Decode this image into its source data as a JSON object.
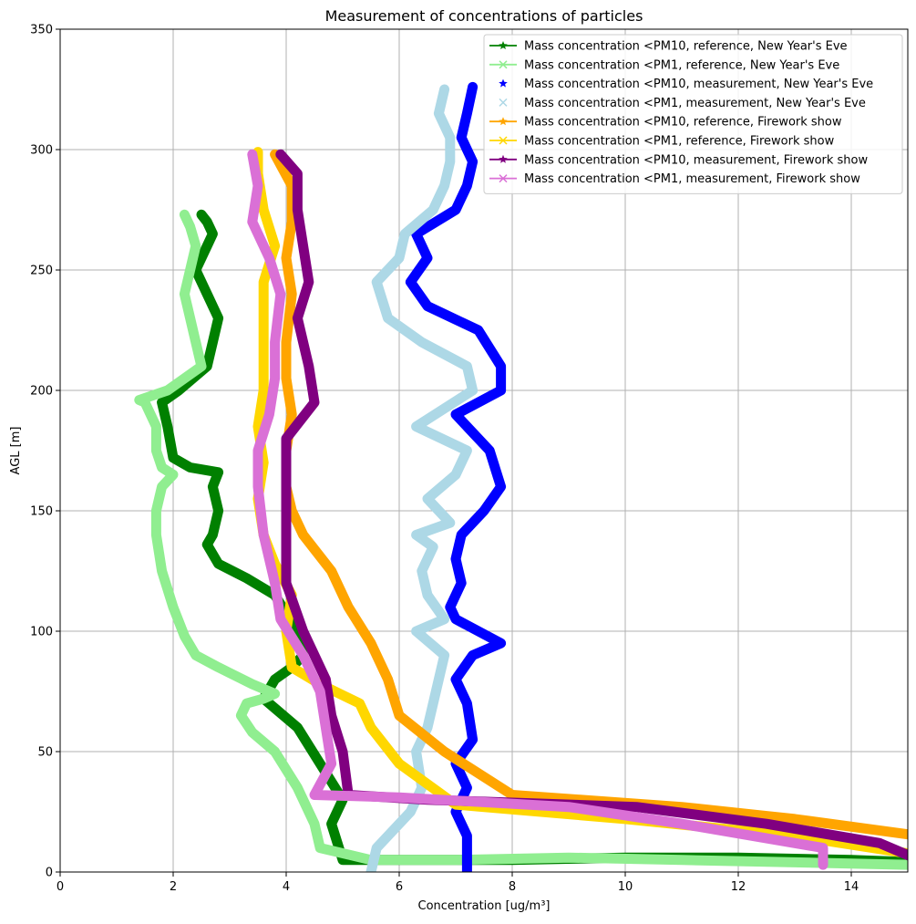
{
  "chart_data": {
    "type": "line",
    "title": "Measurement of concentrations of particles",
    "xlabel": "Concentration [ug/m³]",
    "ylabel": "AGL [m]",
    "xlim": [
      0,
      15
    ],
    "ylim": [
      0,
      350
    ],
    "x_ticks": [
      "0",
      "2",
      "4",
      "6",
      "8",
      "10",
      "12",
      "14"
    ],
    "y_ticks": [
      "0",
      "50",
      "100",
      "150",
      "200",
      "250",
      "300",
      "350"
    ],
    "grid": true,
    "legend_position": "top-right",
    "series": [
      {
        "name": "Mass concentration <PM10, reference, New Year's Eve",
        "color": "#008000",
        "marker": "star",
        "linestyle": "solid",
        "points": [
          [
            15.2,
            4
          ],
          [
            14,
            5
          ],
          [
            12,
            6
          ],
          [
            10,
            6
          ],
          [
            8,
            5
          ],
          [
            6,
            5
          ],
          [
            5,
            5
          ],
          [
            4.8,
            20
          ],
          [
            5,
            30
          ],
          [
            4.6,
            45
          ],
          [
            4.2,
            60
          ],
          [
            3.8,
            68
          ],
          [
            3.6,
            72
          ],
          [
            3.8,
            80
          ],
          [
            4.1,
            85
          ],
          [
            4.3,
            90
          ],
          [
            4.2,
            100
          ],
          [
            3.8,
            115
          ],
          [
            3.3,
            122
          ],
          [
            2.8,
            128
          ],
          [
            2.6,
            136
          ],
          [
            2.7,
            140
          ],
          [
            2.8,
            150
          ],
          [
            2.7,
            160
          ],
          [
            2.8,
            166
          ],
          [
            2.3,
            168
          ],
          [
            2.0,
            172
          ],
          [
            1.9,
            185
          ],
          [
            1.8,
            195
          ],
          [
            2.1,
            200
          ],
          [
            2.6,
            210
          ],
          [
            2.7,
            220
          ],
          [
            2.8,
            230
          ],
          [
            2.6,
            240
          ],
          [
            2.4,
            250
          ],
          [
            2.6,
            260
          ],
          [
            2.7,
            265
          ],
          [
            2.6,
            270
          ],
          [
            2.5,
            273
          ]
        ]
      },
      {
        "name": "Mass concentration <PM1, reference, New Year's Eve",
        "color": "#90ee90",
        "marker": "x",
        "linestyle": "solid",
        "points": [
          [
            15,
            3
          ],
          [
            13,
            4
          ],
          [
            11,
            5
          ],
          [
            9,
            6
          ],
          [
            7,
            5
          ],
          [
            5.5,
            5
          ],
          [
            4.6,
            10
          ],
          [
            4.5,
            20
          ],
          [
            4.2,
            35
          ],
          [
            3.8,
            50
          ],
          [
            3.4,
            58
          ],
          [
            3.2,
            65
          ],
          [
            3.3,
            70
          ],
          [
            3.6,
            72
          ],
          [
            3.8,
            74
          ],
          [
            3.4,
            78
          ],
          [
            2.8,
            85
          ],
          [
            2.4,
            90
          ],
          [
            2.2,
            98
          ],
          [
            2.0,
            110
          ],
          [
            1.8,
            125
          ],
          [
            1.7,
            140
          ],
          [
            1.7,
            150
          ],
          [
            1.8,
            160
          ],
          [
            2.0,
            165
          ],
          [
            1.8,
            168
          ],
          [
            1.7,
            175
          ],
          [
            1.7,
            185
          ],
          [
            1.5,
            195
          ],
          [
            1.4,
            196
          ],
          [
            1.9,
            200
          ],
          [
            2.5,
            210
          ],
          [
            2.4,
            220
          ],
          [
            2.3,
            230
          ],
          [
            2.2,
            240
          ],
          [
            2.3,
            250
          ],
          [
            2.4,
            260
          ],
          [
            2.3,
            268
          ],
          [
            2.2,
            273
          ]
        ]
      },
      {
        "name": "Mass concentration <PM10, measurement, New Year's Eve",
        "color": "#0000ff",
        "marker": "star",
        "linestyle": "none",
        "points": [
          [
            7.2,
            0
          ],
          [
            7.2,
            5
          ],
          [
            7.2,
            15
          ],
          [
            7.0,
            25
          ],
          [
            7.2,
            35
          ],
          [
            7.0,
            45
          ],
          [
            7.3,
            55
          ],
          [
            7.2,
            70
          ],
          [
            7.0,
            80
          ],
          [
            7.3,
            90
          ],
          [
            7.8,
            95
          ],
          [
            7.0,
            105
          ],
          [
            6.9,
            110
          ],
          [
            7.1,
            120
          ],
          [
            7.0,
            130
          ],
          [
            7.1,
            140
          ],
          [
            7.5,
            150
          ],
          [
            7.8,
            160
          ],
          [
            7.6,
            175
          ],
          [
            7.0,
            190
          ],
          [
            7.8,
            200
          ],
          [
            7.8,
            210
          ],
          [
            7.4,
            225
          ],
          [
            6.5,
            235
          ],
          [
            6.2,
            245
          ],
          [
            6.5,
            255
          ],
          [
            6.3,
            265
          ],
          [
            7.0,
            275
          ],
          [
            7.2,
            285
          ],
          [
            7.3,
            295
          ],
          [
            7.1,
            305
          ],
          [
            7.2,
            315
          ],
          [
            7.3,
            326
          ]
        ]
      },
      {
        "name": "Mass concentration <PM1, measurement, New Year's Eve",
        "color": "#add8e6",
        "marker": "x",
        "linestyle": "none",
        "points": [
          [
            5.5,
            0
          ],
          [
            5.6,
            10
          ],
          [
            6.2,
            25
          ],
          [
            6.4,
            35
          ],
          [
            6.3,
            50
          ],
          [
            6.5,
            60
          ],
          [
            6.6,
            70
          ],
          [
            6.7,
            80
          ],
          [
            6.8,
            90
          ],
          [
            6.3,
            100
          ],
          [
            6.8,
            105
          ],
          [
            6.5,
            115
          ],
          [
            6.4,
            125
          ],
          [
            6.6,
            135
          ],
          [
            6.3,
            140
          ],
          [
            6.9,
            145
          ],
          [
            6.5,
            155
          ],
          [
            7.0,
            165
          ],
          [
            7.2,
            175
          ],
          [
            6.3,
            185
          ],
          [
            7.3,
            200
          ],
          [
            7.2,
            210
          ],
          [
            6.4,
            220
          ],
          [
            5.8,
            230
          ],
          [
            5.6,
            245
          ],
          [
            6.0,
            255
          ],
          [
            6.1,
            265
          ],
          [
            6.6,
            275
          ],
          [
            6.8,
            285
          ],
          [
            6.9,
            295
          ],
          [
            6.9,
            305
          ],
          [
            6.7,
            315
          ],
          [
            6.8,
            325
          ]
        ]
      },
      {
        "name": "Mass concentration <PM10, reference, Firework show",
        "color": "#ffa500",
        "marker": "star",
        "linestyle": "solid",
        "points": [
          [
            15.2,
            15
          ],
          [
            13,
            22
          ],
          [
            11,
            27
          ],
          [
            8,
            32
          ],
          [
            6.8,
            50
          ],
          [
            6,
            65
          ],
          [
            5.8,
            80
          ],
          [
            5.5,
            95
          ],
          [
            5.1,
            110
          ],
          [
            4.8,
            125
          ],
          [
            4.3,
            140
          ],
          [
            4.1,
            150
          ],
          [
            4.0,
            160
          ],
          [
            4.0,
            175
          ],
          [
            4.1,
            190
          ],
          [
            4.0,
            205
          ],
          [
            4.0,
            220
          ],
          [
            4.1,
            240
          ],
          [
            4.0,
            255
          ],
          [
            4.1,
            270
          ],
          [
            4.1,
            285
          ],
          [
            3.8,
            298
          ]
        ]
      },
      {
        "name": "Mass concentration <PM1, reference, Firework show",
        "color": "#ffd700",
        "marker": "x",
        "linestyle": "solid",
        "points": [
          [
            15.2,
            7
          ],
          [
            13,
            15
          ],
          [
            10,
            22
          ],
          [
            7,
            28
          ],
          [
            6.0,
            45
          ],
          [
            5.5,
            60
          ],
          [
            5.3,
            70
          ],
          [
            4.6,
            78
          ],
          [
            4.1,
            85
          ],
          [
            4.0,
            100
          ],
          [
            4.1,
            115
          ],
          [
            3.8,
            128
          ],
          [
            3.6,
            140
          ],
          [
            3.5,
            155
          ],
          [
            3.6,
            170
          ],
          [
            3.5,
            185
          ],
          [
            3.6,
            200
          ],
          [
            3.6,
            215
          ],
          [
            3.6,
            230
          ],
          [
            3.6,
            245
          ],
          [
            3.8,
            260
          ],
          [
            3.6,
            275
          ],
          [
            3.5,
            290
          ],
          [
            3.5,
            299
          ]
        ]
      },
      {
        "name": "Mass concentration <PM10, measurement, Firework show",
        "color": "#800080",
        "marker": "star",
        "linestyle": "solid",
        "points": [
          [
            15.2,
            5
          ],
          [
            14.5,
            12
          ],
          [
            12.5,
            20
          ],
          [
            10.2,
            27
          ],
          [
            6.5,
            30
          ],
          [
            5.1,
            32
          ],
          [
            5.0,
            50
          ],
          [
            4.8,
            65
          ],
          [
            4.7,
            80
          ],
          [
            4.3,
            100
          ],
          [
            4.0,
            120
          ],
          [
            4.0,
            140
          ],
          [
            4.0,
            160
          ],
          [
            4.0,
            180
          ],
          [
            4.5,
            195
          ],
          [
            4.4,
            210
          ],
          [
            4.2,
            230
          ],
          [
            4.4,
            245
          ],
          [
            4.3,
            260
          ],
          [
            4.2,
            275
          ],
          [
            4.2,
            290
          ],
          [
            3.9,
            298
          ]
        ]
      },
      {
        "name": "Mass concentration <PM1, measurement, Firework show",
        "color": "#da70d6",
        "marker": "x",
        "linestyle": "solid",
        "points": [
          [
            13.5,
            3
          ],
          [
            13.5,
            10
          ],
          [
            11,
            20
          ],
          [
            9,
            27
          ],
          [
            6,
            31
          ],
          [
            4.5,
            32
          ],
          [
            4.8,
            45
          ],
          [
            4.7,
            60
          ],
          [
            4.6,
            75
          ],
          [
            4.3,
            90
          ],
          [
            3.9,
            105
          ],
          [
            3.8,
            120
          ],
          [
            3.6,
            140
          ],
          [
            3.5,
            160
          ],
          [
            3.5,
            175
          ],
          [
            3.7,
            190
          ],
          [
            3.8,
            205
          ],
          [
            3.8,
            220
          ],
          [
            3.9,
            240
          ],
          [
            3.7,
            255
          ],
          [
            3.4,
            270
          ],
          [
            3.5,
            285
          ],
          [
            3.4,
            298
          ]
        ]
      }
    ]
  }
}
